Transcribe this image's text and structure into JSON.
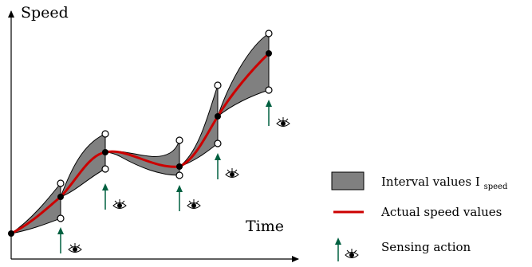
{
  "axes": {
    "y_label": "Speed",
    "x_label": "Time"
  },
  "legend": {
    "interval_label": "Interval values I",
    "interval_subscript": "speed",
    "actual_label": "Actual speed values",
    "sensing_label": "Sensing action"
  },
  "colors": {
    "interval_fill": "#808080",
    "actual_line": "#cc0000",
    "sensing_arrow": "#006040",
    "axis": "#000000"
  },
  "icons": {
    "sensing": "eye-icon"
  }
}
